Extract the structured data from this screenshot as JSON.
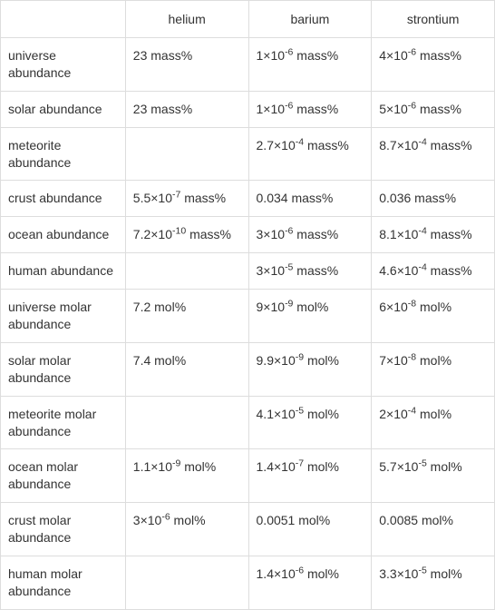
{
  "table": {
    "columns": [
      "",
      "helium",
      "barium",
      "strontium"
    ],
    "rows": [
      {
        "label": "universe abundance",
        "helium": {
          "text": "23 mass%"
        },
        "barium": {
          "coef": "1",
          "exp": "-6",
          "unit": "mass%"
        },
        "strontium": {
          "coef": "4",
          "exp": "-6",
          "unit": "mass%"
        }
      },
      {
        "label": "solar abundance",
        "helium": {
          "text": "23 mass%"
        },
        "barium": {
          "coef": "1",
          "exp": "-6",
          "unit": "mass%"
        },
        "strontium": {
          "coef": "5",
          "exp": "-6",
          "unit": "mass%"
        }
      },
      {
        "label": "meteorite abundance",
        "helium": {
          "text": ""
        },
        "barium": {
          "coef": "2.7",
          "exp": "-4",
          "unit": "mass%"
        },
        "strontium": {
          "coef": "8.7",
          "exp": "-4",
          "unit": "mass%"
        }
      },
      {
        "label": "crust abundance",
        "helium": {
          "coef": "5.5",
          "exp": "-7",
          "unit": "mass%"
        },
        "barium": {
          "text": "0.034 mass%"
        },
        "strontium": {
          "text": "0.036 mass%"
        }
      },
      {
        "label": "ocean abundance",
        "helium": {
          "coef": "7.2",
          "exp": "-10",
          "unit": "mass%"
        },
        "barium": {
          "coef": "3",
          "exp": "-6",
          "unit": "mass%"
        },
        "strontium": {
          "coef": "8.1",
          "exp": "-4",
          "unit": "mass%"
        }
      },
      {
        "label": "human abundance",
        "helium": {
          "text": ""
        },
        "barium": {
          "coef": "3",
          "exp": "-5",
          "unit": "mass%"
        },
        "strontium": {
          "coef": "4.6",
          "exp": "-4",
          "unit": "mass%"
        }
      },
      {
        "label": "universe molar abundance",
        "helium": {
          "text": "7.2 mol%"
        },
        "barium": {
          "coef": "9",
          "exp": "-9",
          "unit": "mol%"
        },
        "strontium": {
          "coef": "6",
          "exp": "-8",
          "unit": "mol%"
        }
      },
      {
        "label": "solar molar abundance",
        "helium": {
          "text": "7.4 mol%"
        },
        "barium": {
          "coef": "9.9",
          "exp": "-9",
          "unit": "mol%"
        },
        "strontium": {
          "coef": "7",
          "exp": "-8",
          "unit": "mol%"
        }
      },
      {
        "label": "meteorite molar abundance",
        "helium": {
          "text": ""
        },
        "barium": {
          "coef": "4.1",
          "exp": "-5",
          "unit": "mol%"
        },
        "strontium": {
          "coef": "2",
          "exp": "-4",
          "unit": "mol%"
        }
      },
      {
        "label": "ocean molar abundance",
        "helium": {
          "coef": "1.1",
          "exp": "-9",
          "unit": "mol%"
        },
        "barium": {
          "coef": "1.4",
          "exp": "-7",
          "unit": "mol%"
        },
        "strontium": {
          "coef": "5.7",
          "exp": "-5",
          "unit": "mol%"
        }
      },
      {
        "label": "crust molar abundance",
        "helium": {
          "coef": "3",
          "exp": "-6",
          "unit": "mol%"
        },
        "barium": {
          "text": "0.0051 mol%"
        },
        "strontium": {
          "text": "0.0085 mol%"
        }
      },
      {
        "label": "human molar abundance",
        "helium": {
          "text": ""
        },
        "barium": {
          "coef": "1.4",
          "exp": "-6",
          "unit": "mol%"
        },
        "strontium": {
          "coef": "3.3",
          "exp": "-5",
          "unit": "mol%"
        }
      }
    ],
    "styling": {
      "border_color": "#dddddd",
      "text_color": "#333333",
      "background_color": "#ffffff",
      "font_family": "Arial",
      "font_size": 14,
      "cell_padding": 10
    }
  }
}
